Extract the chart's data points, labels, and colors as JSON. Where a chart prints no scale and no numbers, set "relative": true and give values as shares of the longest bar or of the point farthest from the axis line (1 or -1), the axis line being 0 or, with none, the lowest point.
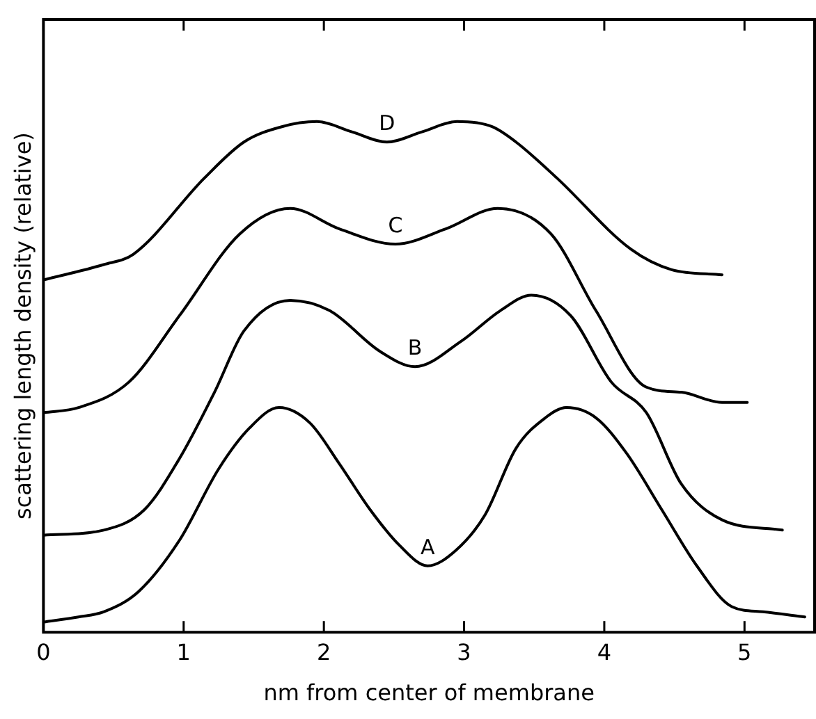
{
  "chart_data": {
    "type": "line",
    "relative": true,
    "xlabel": "nm from center of membrane",
    "ylabel": "scattering length density (relative)",
    "xlim": [
      0,
      5.5
    ],
    "xticks": [
      0,
      1,
      2,
      3,
      4,
      5
    ],
    "grid": false,
    "legend": false,
    "marker": "none",
    "line_style": "solid",
    "series": [
      {
        "name": "A",
        "color": "#000000",
        "x": [
          0,
          0.25,
          0.43,
          0.68,
          0.97,
          1.25,
          1.47,
          1.68,
          1.9,
          2.11,
          2.33,
          2.54,
          2.74,
          2.94,
          3.15,
          3.37,
          3.58,
          3.73,
          3.94,
          4.16,
          4.41,
          4.66,
          4.91,
          5.13,
          5.43
        ],
        "values": [
          0.02,
          0.03,
          0.04,
          0.08,
          0.18,
          0.32,
          0.4,
          0.44,
          0.41,
          0.33,
          0.24,
          0.17,
          0.13,
          0.16,
          0.23,
          0.36,
          0.42,
          0.44,
          0.42,
          0.35,
          0.24,
          0.13,
          0.05,
          0.04,
          0.03
        ]
      },
      {
        "name": "B",
        "color": "#000000",
        "x": [
          0,
          0.43,
          0.72,
          0.97,
          1.22,
          1.43,
          1.76,
          2.04,
          2.4,
          2.65,
          2.98,
          3.26,
          3.48,
          3.76,
          4.05,
          4.3,
          4.55,
          4.84,
          5.27
        ],
        "values": [
          0.19,
          0.2,
          0.24,
          0.34,
          0.47,
          0.59,
          0.65,
          0.63,
          0.55,
          0.52,
          0.57,
          0.63,
          0.66,
          0.62,
          0.49,
          0.43,
          0.29,
          0.22,
          0.2
        ]
      },
      {
        "name": "C",
        "color": "#000000",
        "x": [
          0,
          0.25,
          0.61,
          0.97,
          1.4,
          1.76,
          2.11,
          2.51,
          2.87,
          3.24,
          3.62,
          3.94,
          4.3,
          4.55,
          4.84,
          5.02
        ],
        "values": [
          0.43,
          0.44,
          0.49,
          0.62,
          0.78,
          0.83,
          0.79,
          0.76,
          0.79,
          0.83,
          0.78,
          0.63,
          0.48,
          0.47,
          0.45,
          0.45
        ]
      },
      {
        "name": "D",
        "color": "#000000",
        "x": [
          0,
          0.43,
          0.64,
          1.15,
          1.43,
          1.7,
          1.95,
          2.2,
          2.45,
          2.7,
          2.95,
          3.2,
          3.37,
          3.66,
          4.19,
          4.48,
          4.84
        ],
        "values": [
          0.69,
          0.72,
          0.74,
          0.89,
          0.96,
          0.99,
          1,
          0.98,
          0.96,
          0.98,
          1,
          0.99,
          0.96,
          0.89,
          0.75,
          0.71,
          0.7
        ]
      }
    ]
  }
}
